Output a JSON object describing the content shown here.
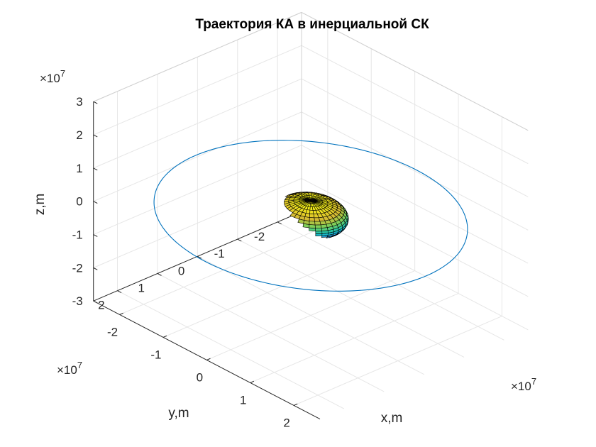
{
  "chart_data": {
    "type": "line",
    "title": "Траектория КА в инерциальной СК",
    "xlabel": "x,m",
    "ylabel": "y,m",
    "zlabel": "z,m",
    "exponent_label": "×10",
    "exponent_power": "7",
    "xlim": [
      -2.6,
      2.6
    ],
    "ylim": [
      -2.6,
      2.6
    ],
    "zlim": [
      -3,
      3
    ],
    "xticks": [
      "-2",
      "-1",
      "0",
      "1",
      "2"
    ],
    "yticks": [
      "-2",
      "-1",
      "0",
      "1",
      "2"
    ],
    "zticks": [
      "-3",
      "-2",
      "-1",
      "0",
      "1",
      "2",
      "3"
    ],
    "grid": true,
    "series": [
      {
        "style": "3d-line",
        "color": "#0072BD",
        "note_shape": "circular orbit in equatorial plane z = 0",
        "radius": 26500000.0,
        "center": [
          0,
          0,
          0
        ]
      },
      {
        "style": "surface",
        "colormap": "parula",
        "note_shape": "oblate ellipsoid (Earth) centred at origin",
        "semi_axes": [
          6378000.0,
          6378000.0,
          4600000.0
        ]
      }
    ]
  }
}
